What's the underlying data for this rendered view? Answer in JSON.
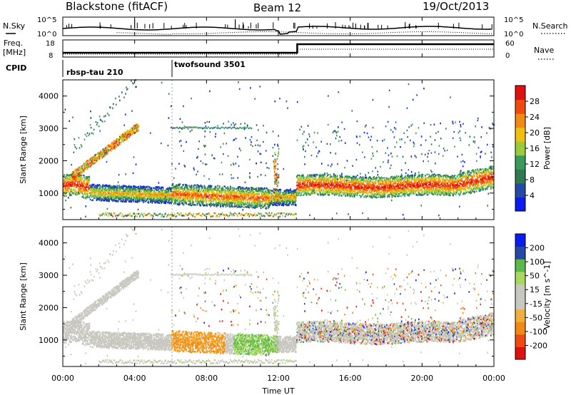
{
  "header": {
    "station": "Blackstone (fitACF)",
    "beam": "Beam 12",
    "date": "19/Oct/2013"
  },
  "noise_panel": {
    "left_label": "N.Sky",
    "right_label": "N.Search",
    "left_ticks": [
      "10^5",
      "10^0"
    ],
    "right_ticks": [
      "10^5",
      "10^0"
    ]
  },
  "freq_panel": {
    "left_label_top": "Freq.",
    "left_label_bottom": "[MHz]",
    "left_ticks": [
      "18",
      "8"
    ],
    "right_label": "Nave",
    "right_ticks": [
      "60",
      "0"
    ]
  },
  "cpid": {
    "label": "CPID",
    "segments": [
      {
        "name": "rbsp-tau 210",
        "start_hour": 0,
        "end_hour": 6
      },
      {
        "name": "twofsound 3501",
        "start_hour": 6,
        "end_hour": 24
      }
    ]
  },
  "colors": {
    "power_scale": [
      "#0a1cf0",
      "#234aa5",
      "#2f7a50",
      "#3a9a5a",
      "#9acb3a",
      "#f0c010",
      "#f08a10",
      "#f04a10",
      "#e01010"
    ],
    "velocity_scale": [
      "#e01010",
      "#f04a10",
      "#f08a10",
      "#f0b040",
      "#c8c8c0",
      "#c8c8c0",
      "#a8d860",
      "#5cb84a",
      "#234aa5",
      "#0a1cf0"
    ]
  },
  "chart_data": [
    {
      "type": "heatmap",
      "name": "power",
      "ylabel": "Slant Range [km]",
      "ylim": [
        180,
        4500
      ],
      "yticks": [
        "1000",
        "2000",
        "3000",
        "4000"
      ],
      "colorbar_label": "Power [dB]",
      "colorbar_ticks": [
        "4",
        "8",
        "12",
        "16",
        "20",
        "24",
        "28"
      ],
      "colorbar_range": [
        0,
        32
      ]
    },
    {
      "type": "heatmap",
      "name": "velocity",
      "ylabel": "Slant Range [km]",
      "ylim": [
        180,
        4500
      ],
      "yticks": [
        "1000",
        "2000",
        "3000",
        "4000"
      ],
      "colorbar_label": "Velocity [m s^-1]",
      "colorbar_ticks": [
        "-200",
        "-100",
        "-50",
        "-15",
        "15",
        "50",
        "100",
        "200"
      ],
      "colorbar_range": [
        -250,
        250
      ]
    }
  ],
  "xaxis": {
    "label": "Time UT",
    "xlim": [
      0,
      24
    ],
    "ticks": [
      "00:00",
      "04:00",
      "08:00",
      "12:00",
      "16:00",
      "20:00",
      "00:00"
    ]
  }
}
